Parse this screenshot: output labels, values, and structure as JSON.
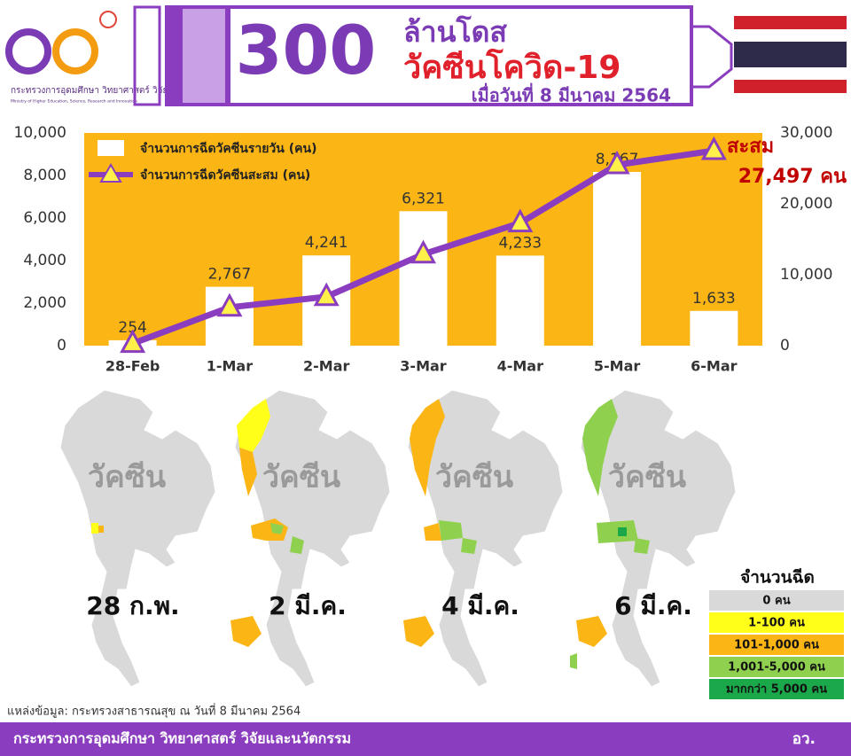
{
  "header": {
    "logo_text_th": "กระทรวงการอุดมศึกษา วิทยาศาสตร์ วิจัยและนวัตกรรม",
    "logo_text_en": "Ministry of Higher Education, Science, Research and Innovation",
    "number": "300",
    "unit": "ล้านโดส",
    "subject": "วัคซีนโควิด-19",
    "date": "เมื่อวันที่ 8 มีนาคม 2564"
  },
  "chart_data": {
    "type": "bar",
    "categories": [
      "28-Feb",
      "1-Mar",
      "2-Mar",
      "3-Mar",
      "4-Mar",
      "5-Mar",
      "6-Mar"
    ],
    "series": [
      {
        "name": "จำนวนการฉีดวัคซีนรายวัน (คน)",
        "color": "#ffffff",
        "values": [
          254,
          2767,
          4241,
          6321,
          4233,
          8167,
          1633
        ],
        "value_labels": [
          "254",
          "2,767",
          "4,241",
          "6,321",
          "4,233",
          "8,167",
          "1,633"
        ]
      },
      {
        "name": "จำนวนการฉีดวัคซีนสะสม (คน)",
        "color": "#8b3dbf",
        "axis": "y2",
        "values": [
          300,
          5400,
          6900,
          12900,
          17300,
          25500,
          27497
        ]
      }
    ],
    "ylim": [
      0,
      10000
    ],
    "yticks": [
      0,
      {
        "value": 2000,
        "label": "2,000"
      },
      {
        "value": 4000,
        "label": "4,000"
      },
      {
        "value": 6000,
        "label": "6,000"
      },
      {
        "value": 8000,
        "label": "8,000"
      },
      {
        "value": 10000,
        "label": "10,000"
      }
    ],
    "y2lim": [
      0,
      30000
    ],
    "y2ticks": [
      0,
      {
        "value": 10000,
        "label": "10,000"
      },
      {
        "value": 20000,
        "label": "20,000"
      },
      {
        "value": 30000,
        "label": "30,000"
      }
    ],
    "background": "#fbb515",
    "marker_color": "#fff04a",
    "annotation": {
      "label": "สะสม",
      "value_text": "27,497 คน"
    }
  },
  "maps": [
    {
      "watermark": "วัคซีน",
      "label": "28 ก.พ."
    },
    {
      "watermark": "วัคซีน",
      "label": "2 มี.ค."
    },
    {
      "watermark": "วัคซีน",
      "label": "4 มี.ค."
    },
    {
      "watermark": "วัคซีน",
      "label": "6 มี.ค."
    }
  ],
  "map_legend": {
    "title": "จำนวนฉีด",
    "items": [
      {
        "label": "0 คน",
        "color": "#d9d9d9"
      },
      {
        "label": "1-100 คน",
        "color": "#ffff1a"
      },
      {
        "label": "101-1,000 คน",
        "color": "#fbb515"
      },
      {
        "label": "1,001-5,000 คน",
        "color": "#8fd14f"
      },
      {
        "label": "มากกว่า 5,000 คน",
        "color": "#1aa84a"
      }
    ]
  },
  "source": "แหล่งข้อมูล: กระทรวงสาธารณสุข ณ วันที่ 8 มีนาคม 2564",
  "footer": {
    "ministry": "กระทรวงการอุดมศึกษา วิทยาศาสตร์ วิจัยและนวัตกรรม",
    "abbr": "อว."
  }
}
